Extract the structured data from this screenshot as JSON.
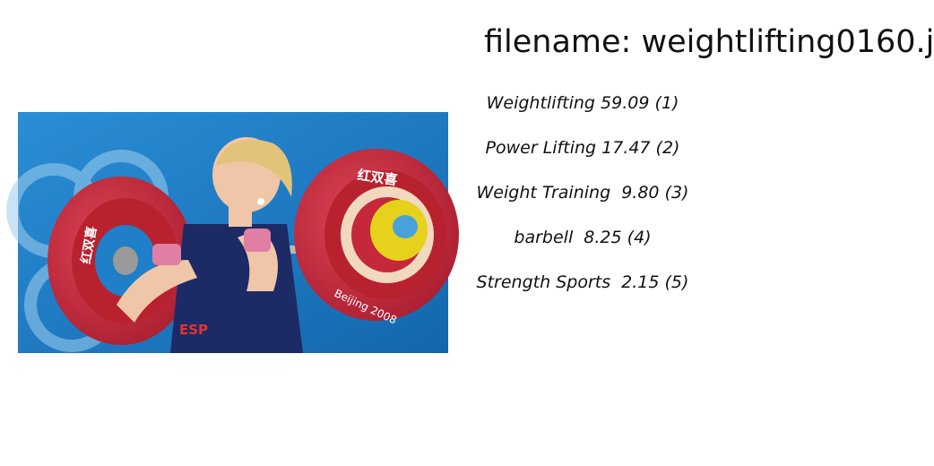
{
  "header": {
    "filename_text": "filename: weightlifting0160.j"
  },
  "image": {
    "icon": "weightlifter-photo",
    "jersey_text": "ESP",
    "sponsor_text": "红双喜",
    "plate_text": "Beijing 2008"
  },
  "predictions": [
    {
      "text": "Weightlifting 59.09 (1)"
    },
    {
      "text": "Power Lifting 17.47 (2)"
    },
    {
      "text": "Weight Training  9.80 (3)"
    },
    {
      "text": "barbell  8.25 (4)"
    },
    {
      "text": "Strength Sports  2.15 (5)"
    }
  ],
  "colors": {
    "background_blue": "#1f7fc8",
    "plate_red": "#c5283a",
    "jersey_navy": "#1c2a66",
    "collar_yellow": "#e6d21c",
    "wristband_pink": "#e07ea4",
    "hair_blonde": "#e3c37a"
  }
}
